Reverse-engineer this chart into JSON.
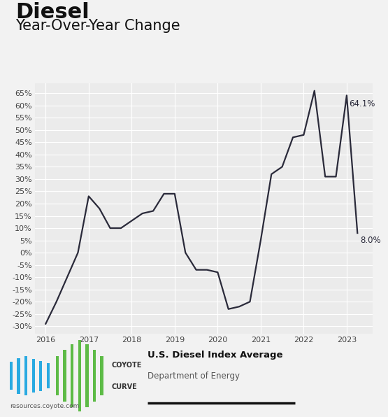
{
  "title": "Diesel",
  "subtitle": "Year-Over-Year Change",
  "x_values": [
    2016.0,
    2016.25,
    2016.5,
    2016.75,
    2017.0,
    2017.25,
    2017.5,
    2017.75,
    2018.0,
    2018.25,
    2018.5,
    2018.75,
    2019.0,
    2019.25,
    2019.5,
    2019.75,
    2020.0,
    2020.25,
    2020.5,
    2020.75,
    2021.0,
    2021.25,
    2021.5,
    2021.75,
    2022.0,
    2022.25,
    2022.5,
    2022.75,
    2023.0,
    2023.25
  ],
  "y_values": [
    -29,
    -20,
    -10,
    0,
    23,
    18,
    10,
    10,
    13,
    16,
    17,
    24,
    24,
    0,
    -7,
    -7,
    -8,
    -23,
    -22,
    -20,
    5,
    32,
    35,
    47,
    48,
    66,
    31,
    31,
    64.1,
    8.0
  ],
  "line_color": "#2a2a3a",
  "line_width": 1.6,
  "bg_color": "#f2f2f2",
  "plot_bg_color": "#ebebeb",
  "grid_color": "#ffffff",
  "yticks": [
    -30,
    -25,
    -20,
    -15,
    -10,
    -5,
    0,
    5,
    10,
    15,
    20,
    25,
    30,
    35,
    40,
    45,
    50,
    55,
    60,
    65
  ],
  "xticks": [
    2016,
    2017,
    2018,
    2019,
    2020,
    2021,
    2022,
    2023
  ],
  "ylim": [
    -33,
    69
  ],
  "xlim": [
    2015.75,
    2023.6
  ],
  "ann64_x": 2023.0,
  "ann64_y": 64.1,
  "ann64_label": "64.1%",
  "ann8_x": 2023.25,
  "ann8_y": 8.0,
  "ann8_label": "8.0%",
  "legend_title": "U.S. Diesel Index Average",
  "legend_subtitle": "Department of Energy",
  "footer_text": "resources.coyote.com",
  "title_fontsize": 22,
  "subtitle_fontsize": 15,
  "axis_tick_fontsize": 8,
  "logo_bar_heights_blue": [
    0.35,
    0.45,
    0.5,
    0.42,
    0.38,
    0.32
  ],
  "logo_bar_heights_green": [
    0.5,
    0.65,
    0.8,
    0.9,
    0.8,
    0.65,
    0.5
  ],
  "logo_blue": "#29aae1",
  "logo_green": "#5dbb46"
}
